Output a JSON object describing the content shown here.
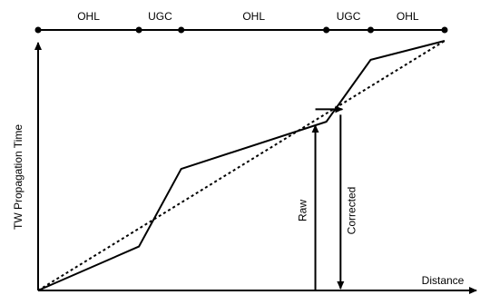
{
  "top_line": {
    "segments": [
      {
        "label": "OHL",
        "start": 0.0,
        "end": 0.248
      },
      {
        "label": "UGC",
        "start": 0.248,
        "end": 0.352
      },
      {
        "label": "OHL",
        "start": 0.352,
        "end": 0.709
      },
      {
        "label": "UGC",
        "start": 0.709,
        "end": 0.818
      },
      {
        "label": "OHL",
        "start": 0.818,
        "end": 1.0
      }
    ]
  },
  "axes": {
    "y_label": "TW Propagation Time",
    "x_label": "Distance"
  },
  "profile": {
    "raw_curve": [
      {
        "distance": 0.0,
        "time": 0.0
      },
      {
        "distance": 0.248,
        "time": 0.176
      },
      {
        "distance": 0.352,
        "time": 0.487
      },
      {
        "distance": 0.709,
        "time": 0.676
      },
      {
        "distance": 0.818,
        "time": 0.924
      },
      {
        "distance": 1.0,
        "time": 1.0
      }
    ],
    "ideal_line": [
      {
        "distance": 0.0,
        "time": 0.0
      },
      {
        "distance": 1.0,
        "time": 1.0
      }
    ],
    "raw_marker": {
      "distance": 0.682,
      "time": 0.676,
      "label": "Raw"
    },
    "corrected_marker": {
      "distance": 0.744,
      "time": 0.733,
      "label": "Corrected"
    }
  },
  "colors": {
    "line": "#000000",
    "background": "#ffffff"
  }
}
